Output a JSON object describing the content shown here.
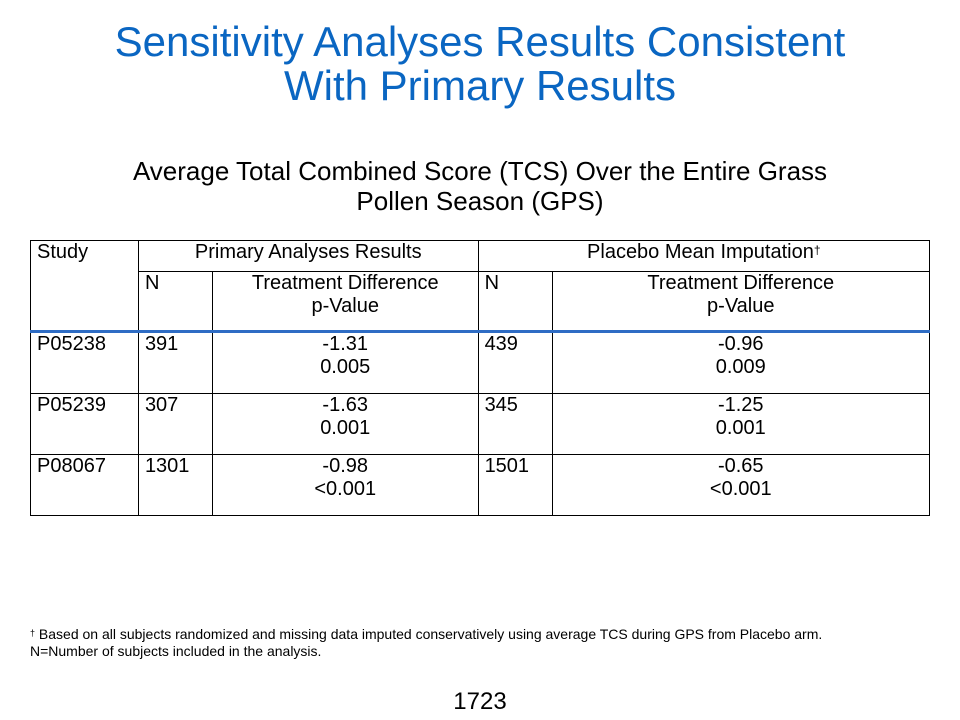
{
  "title_line1": "Sensitivity Analyses Results Consistent",
  "title_line2": "With Primary Results",
  "subtitle_line1": "Average Total Combined Score (TCS) Over the Entire Grass",
  "subtitle_line2": "Pollen Season (GPS)",
  "table": {
    "group_headers": {
      "primary": "Primary Analyses Results",
      "imputation": "Placebo Mean Imputation",
      "imputation_mark": "†"
    },
    "columns": {
      "study": "Study",
      "n": "N",
      "td_line1": "Treatment Difference",
      "td_line2": "p-Value"
    },
    "rows": [
      {
        "study": "P05238",
        "n1": "391",
        "diff1": "-1.31",
        "p1": "0.005",
        "n2": "439",
        "diff2": "-0.96",
        "p2": "0.009"
      },
      {
        "study": "P05239",
        "n1": "307",
        "diff1": "-1.63",
        "p1": "0.001",
        "n2": "345",
        "diff2": "-1.25",
        "p2": "0.001"
      },
      {
        "study": "P08067",
        "n1": "1301",
        "diff1": "-0.98",
        "p1": "<0.001",
        "n2": "1501",
        "diff2": "-0.65",
        "p2": "<0.001"
      }
    ]
  },
  "footnote": {
    "mark": "†",
    "line1": " Based on all subjects randomized and missing data imputed conservatively using average TCS during GPS from Placebo arm.",
    "line2": "N=Number of subjects included in the analysis."
  },
  "page_number": "1723"
}
